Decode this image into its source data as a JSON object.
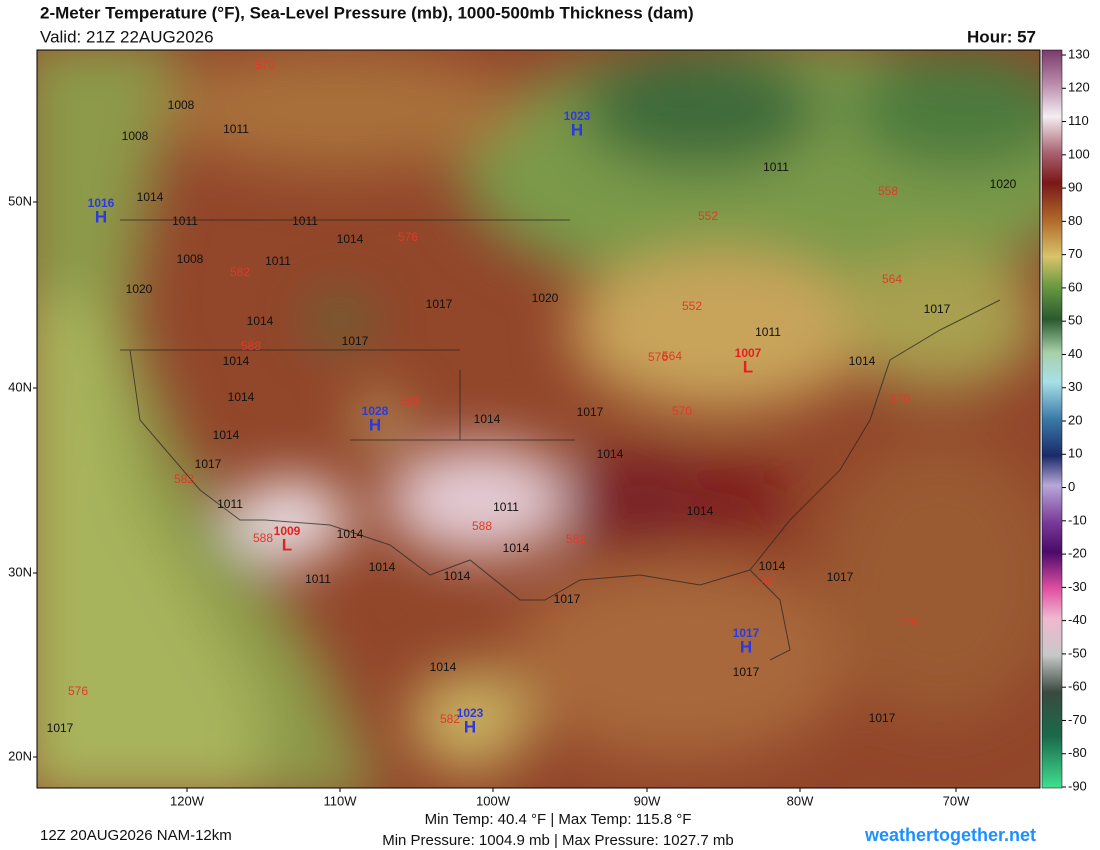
{
  "header": {
    "title": "2-Meter Temperature (°F), Sea-Level Pressure (mb), 1000-500mb Thickness (dam)",
    "valid": "Valid: 21Z 22AUG2026",
    "hour": "Hour: 57"
  },
  "map": {
    "latitude_labels": [
      "50N",
      "40N",
      "30N",
      "20N"
    ],
    "longitude_labels": [
      "120W",
      "110W",
      "100W",
      "90W",
      "80W",
      "70W"
    ],
    "high_pressure_centers": [
      {
        "marker": "H",
        "value": 1023
      },
      {
        "marker": "H",
        "value": 1016
      },
      {
        "marker": "H",
        "value": 1028
      },
      {
        "marker": "H",
        "value": 1023
      },
      {
        "marker": "H",
        "value": 1017
      }
    ],
    "low_pressure_centers": [
      {
        "marker": "L",
        "value": 1009
      },
      {
        "marker": "L",
        "value": 1007
      }
    ],
    "isobar_labels": [
      1008,
      1011,
      1008,
      1014,
      1011,
      1008,
      1020,
      1014,
      1014,
      1014,
      1014,
      1017,
      1011,
      1014,
      1011,
      1011,
      1017,
      1014,
      1017,
      1014,
      1011,
      1014,
      1017,
      1014,
      1014,
      1017,
      1020,
      1011,
      1014,
      1014,
      1017,
      1017,
      1014,
      1017,
      1017,
      1020,
      1014,
      1017,
      1011,
      1014,
      1011
    ],
    "thickness_labels": [
      570,
      582,
      588,
      582,
      588,
      582,
      576,
      570,
      564,
      552,
      552,
      558,
      564,
      570,
      576,
      576,
      576,
      582,
      588,
      576,
      588
    ]
  },
  "colorbar": {
    "ticks": [
      130,
      120,
      110,
      100,
      90,
      80,
      70,
      60,
      50,
      40,
      30,
      20,
      10,
      0,
      -10,
      -20,
      -30,
      -40,
      -50,
      -60,
      -70,
      -80,
      -90
    ]
  },
  "footer": {
    "run": "12Z 20AUG2026 NAM-12km",
    "temperature_range": "Min Temp:  40.4 °F | Max Temp: 115.8 °F",
    "pressure_range": "Min Pressure: 1004.9 mb | Max Pressure: 1027.7 mb",
    "site": "weathertogether.net"
  }
}
